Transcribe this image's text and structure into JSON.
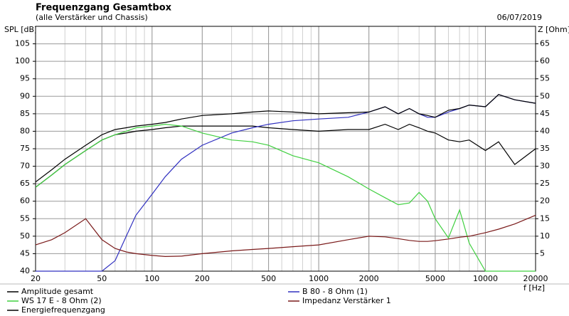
{
  "chart_data": {
    "type": "line",
    "title": "Frequenzgang Gesamtbox",
    "subtitle": "(alle Verstärker und Chassis)",
    "date": "06/07/2019",
    "ylabel": "SPL [dB]",
    "y2label": "Z [Ohm]",
    "xlabel": "f [Hz]",
    "xscale": "log",
    "grid": true,
    "x": [
      20,
      25,
      30,
      40,
      50,
      60,
      70,
      80,
      100,
      120,
      150,
      200,
      300,
      400,
      500,
      700,
      1000,
      1500,
      2000,
      2500,
      3000,
      3500,
      4000,
      4500,
      5000,
      6000,
      7000,
      8000,
      10000,
      12000,
      15000,
      20000
    ],
    "xlim": [
      20,
      20000
    ],
    "xticks": [
      20,
      50,
      100,
      200,
      500,
      1000,
      2000,
      5000,
      10000,
      20000
    ],
    "ylim": [
      40,
      110
    ],
    "yticks": [
      40,
      45,
      50,
      55,
      60,
      65,
      70,
      75,
      80,
      85,
      90,
      95,
      100,
      105
    ],
    "y2lim": [
      0,
      70
    ],
    "y2ticks": [
      5,
      10,
      15,
      20,
      25,
      30,
      35,
      40,
      45,
      50,
      55,
      60,
      65
    ],
    "series": [
      {
        "name": "Amplitude gesamt",
        "color": "#000000",
        "values": [
          64,
          67.5,
          70.5,
          74.5,
          77.5,
          79,
          79.5,
          80,
          80.5,
          81,
          81.5,
          81.5,
          81.5,
          81.5,
          81,
          80.5,
          80,
          80.5,
          80.5,
          82,
          80.5,
          82,
          81,
          80,
          79.5,
          77.5,
          77,
          77.5,
          74.5,
          77,
          70.5,
          75
        ]
      },
      {
        "name": "B 80 - 8 Ohm (1)",
        "color": "#3030c0",
        "values": [
          40,
          40,
          40,
          40,
          40,
          43,
          50,
          56,
          62,
          67,
          72,
          76,
          79.5,
          81,
          82,
          83,
          83.5,
          84,
          85.5,
          87,
          85,
          86.5,
          85,
          84,
          84,
          85.5,
          86.5,
          87.5,
          87,
          90.5,
          89,
          88
        ]
      },
      {
        "name": "WS 17 E - 8 Ohm  (2)",
        "color": "#40d040",
        "values": [
          64,
          67.5,
          70.5,
          74.5,
          77.5,
          79,
          80,
          81,
          81.5,
          82,
          81.5,
          79.5,
          77.5,
          77,
          76,
          73,
          71,
          67,
          63.5,
          61,
          59,
          59.5,
          62.5,
          60,
          55,
          49.5,
          57.5,
          48,
          40,
          40,
          40,
          40
        ]
      },
      {
        "name": "Impedanz Verstärker 1",
        "color": "#7a1a1a",
        "axis": "y2",
        "values": [
          7.5,
          9,
          11,
          15,
          9,
          6.5,
          5.5,
          5,
          4.5,
          4.2,
          4.3,
          5,
          5.8,
          6.2,
          6.5,
          7,
          7.5,
          9,
          10,
          9.8,
          9.3,
          8.8,
          8.5,
          8.5,
          8.7,
          9.2,
          9.7,
          10,
          11,
          12,
          13.5,
          16
        ]
      },
      {
        "name": "Energiefrequenzgang",
        "color": "#000000",
        "values": [
          65.5,
          69,
          72,
          76,
          79,
          80.5,
          81,
          81.5,
          82,
          82.5,
          83.5,
          84.5,
          85,
          85.5,
          85.8,
          85.5,
          85,
          85.3,
          85.5,
          87,
          85,
          86.5,
          85,
          84.5,
          84,
          86,
          86.5,
          87.5,
          87,
          90.5,
          89,
          88
        ]
      }
    ]
  }
}
